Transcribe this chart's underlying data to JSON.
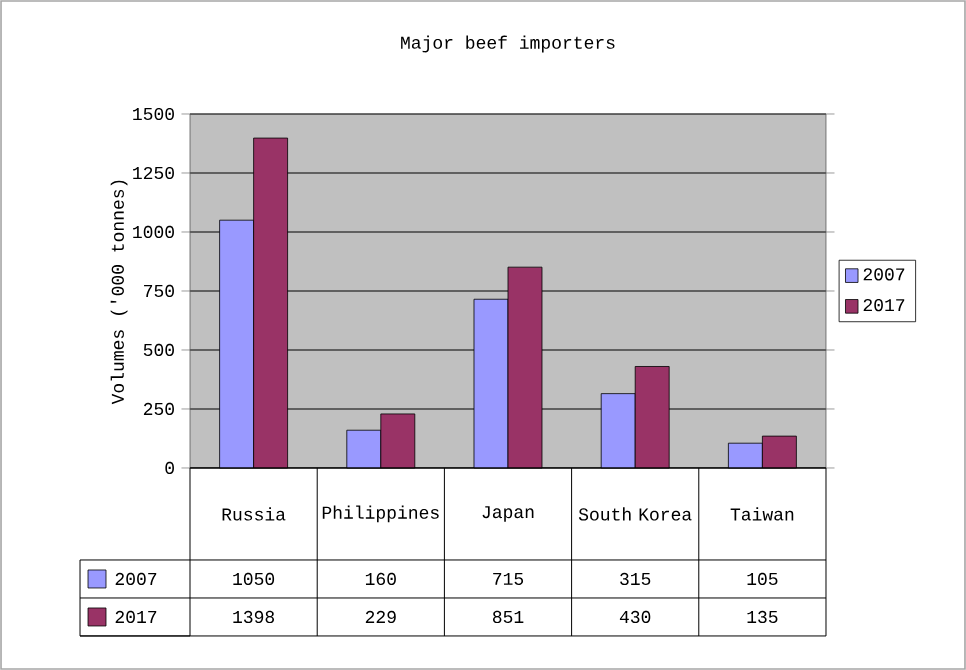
{
  "chart_data": {
    "type": "bar",
    "title": "Major beef importers",
    "ylabel": "Volumes ('000 tonnes)",
    "categories": [
      "Russia",
      "Philippines",
      "Japan",
      "South Korea",
      "Taiwan"
    ],
    "series": [
      {
        "name": "2007",
        "color": "#9999ff",
        "values": [
          1050,
          160,
          715,
          315,
          105
        ]
      },
      {
        "name": "2017",
        "color": "#993366",
        "values": [
          1398,
          229,
          851,
          430,
          135
        ]
      }
    ],
    "ylim": [
      0,
      1500
    ],
    "yticks": [
      0,
      250,
      500,
      750,
      1000,
      1250,
      1500
    ],
    "grid": "y",
    "legend": "right",
    "data_labels": true
  }
}
